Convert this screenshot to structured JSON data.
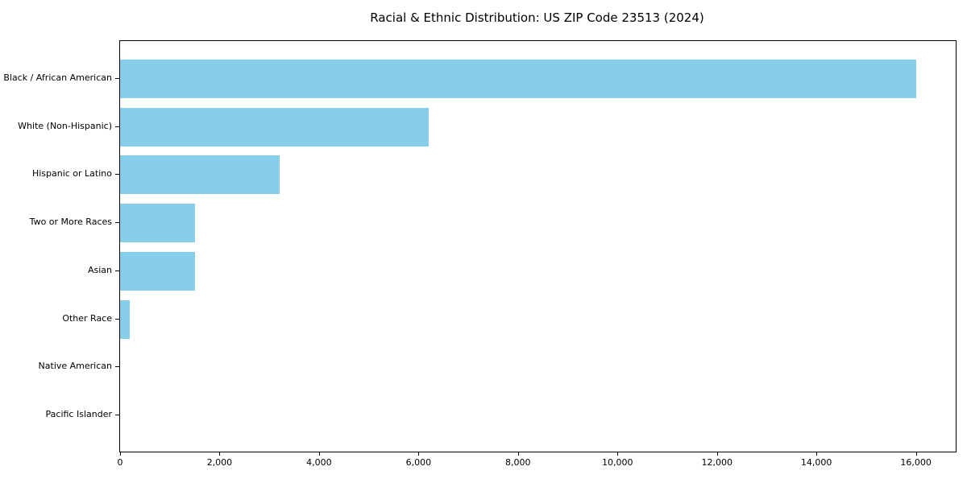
{
  "chart_data": {
    "type": "bar",
    "orientation": "horizontal",
    "title": "Racial & Ethnic Distribution: US ZIP Code 23513 (2024)",
    "categories": [
      "Black / African American",
      "White (Non-Hispanic)",
      "Hispanic or Latino",
      "Two or More Races",
      "Asian",
      "Other Race",
      "Native American",
      "Pacific Islander"
    ],
    "values": [
      16000,
      6200,
      3200,
      1500,
      1500,
      200,
      0,
      0
    ],
    "xlabel": "",
    "ylabel": "",
    "xlim": [
      0,
      16800
    ],
    "x_ticks": [
      0,
      2000,
      4000,
      6000,
      8000,
      10000,
      12000,
      14000,
      16000
    ],
    "x_tick_labels": [
      "0",
      "2,000",
      "4,000",
      "6,000",
      "8,000",
      "10,000",
      "12,000",
      "14,000",
      "16,000"
    ],
    "bar_color": "#87CEEB",
    "axis_color": "#000000",
    "background_color": "#ffffff",
    "grid": false,
    "legend": null
  }
}
